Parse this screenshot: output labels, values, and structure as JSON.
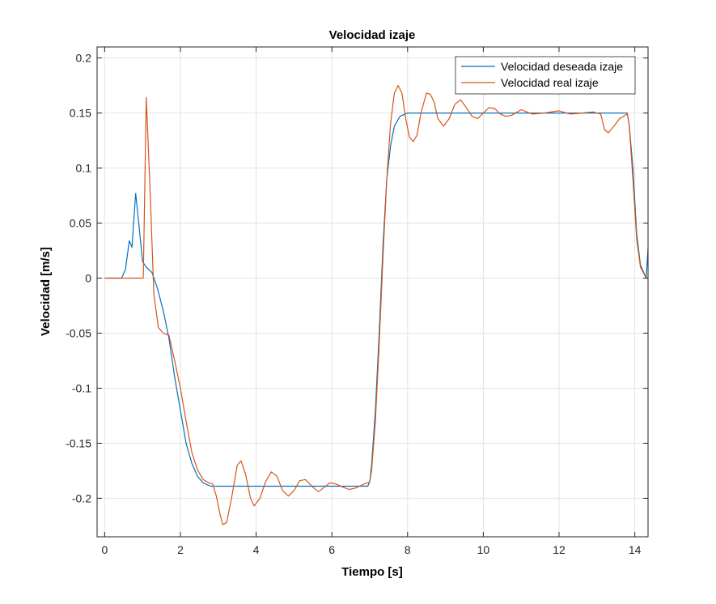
{
  "chart_data": {
    "type": "line",
    "title": "Velocidad izaje",
    "xlabel": "Tiempo [s]",
    "ylabel": "Velocidad [m/s]",
    "xlim": [
      -0.2,
      14.35
    ],
    "ylim": [
      -0.235,
      0.21
    ],
    "xticks": [
      0,
      2,
      4,
      6,
      8,
      10,
      12,
      14
    ],
    "xtick_labels": [
      "0",
      "2",
      "4",
      "6",
      "8",
      "10",
      "12",
      "14"
    ],
    "yticks": [
      -0.2,
      -0.15,
      -0.1,
      -0.05,
      0,
      0.05,
      0.1,
      0.15,
      0.2
    ],
    "ytick_labels": [
      "-0.2",
      "-0.15",
      "-0.1",
      "-0.05",
      "0",
      "0.05",
      "0.1",
      "0.15",
      "0.2"
    ],
    "grid": true,
    "legend_position": "top-right",
    "series": [
      {
        "name": "Velocidad deseada izaje",
        "color": "#0072BD",
        "points": [
          [
            0,
            0
          ],
          [
            0.45,
            0
          ],
          [
            0.55,
            0.008
          ],
          [
            0.65,
            0.034
          ],
          [
            0.72,
            0.028
          ],
          [
            0.82,
            0.077
          ],
          [
            0.9,
            0.05
          ],
          [
            1.0,
            0.015
          ],
          [
            1.1,
            0.01
          ],
          [
            1.25,
            0.005
          ],
          [
            1.4,
            -0.01
          ],
          [
            1.55,
            -0.03
          ],
          [
            1.7,
            -0.055
          ],
          [
            1.85,
            -0.09
          ],
          [
            2.0,
            -0.12
          ],
          [
            2.15,
            -0.15
          ],
          [
            2.3,
            -0.168
          ],
          [
            2.45,
            -0.18
          ],
          [
            2.6,
            -0.186
          ],
          [
            2.8,
            -0.189
          ],
          [
            3.0,
            -0.189
          ],
          [
            4.0,
            -0.189
          ],
          [
            5.0,
            -0.189
          ],
          [
            6.0,
            -0.189
          ],
          [
            6.95,
            -0.189
          ],
          [
            7.0,
            -0.185
          ],
          [
            7.05,
            -0.17
          ],
          [
            7.15,
            -0.12
          ],
          [
            7.25,
            -0.05
          ],
          [
            7.35,
            0.03
          ],
          [
            7.45,
            0.09
          ],
          [
            7.55,
            0.12
          ],
          [
            7.65,
            0.138
          ],
          [
            7.8,
            0.147
          ],
          [
            8.0,
            0.15
          ],
          [
            9.0,
            0.15
          ],
          [
            10.0,
            0.15
          ],
          [
            11.0,
            0.15
          ],
          [
            12.0,
            0.15
          ],
          [
            13.0,
            0.15
          ],
          [
            13.8,
            0.15
          ],
          [
            13.85,
            0.14
          ],
          [
            13.95,
            0.1
          ],
          [
            14.05,
            0.04
          ],
          [
            14.15,
            0.012
          ],
          [
            14.3,
            0.0
          ],
          [
            14.35,
            0.027
          ]
        ]
      },
      {
        "name": "Velocidad real izaje",
        "color": "#D95319",
        "points": [
          [
            0,
            0
          ],
          [
            0.5,
            0
          ],
          [
            1.02,
            0
          ],
          [
            1.1,
            0.164
          ],
          [
            1.2,
            0.08
          ],
          [
            1.3,
            -0.015
          ],
          [
            1.42,
            -0.045
          ],
          [
            1.55,
            -0.05
          ],
          [
            1.7,
            -0.052
          ],
          [
            1.85,
            -0.075
          ],
          [
            2.0,
            -0.1
          ],
          [
            2.15,
            -0.13
          ],
          [
            2.3,
            -0.158
          ],
          [
            2.45,
            -0.174
          ],
          [
            2.6,
            -0.183
          ],
          [
            2.75,
            -0.186
          ],
          [
            2.85,
            -0.187
          ],
          [
            2.95,
            -0.198
          ],
          [
            3.05,
            -0.215
          ],
          [
            3.12,
            -0.224
          ],
          [
            3.22,
            -0.222
          ],
          [
            3.35,
            -0.2
          ],
          [
            3.5,
            -0.17
          ],
          [
            3.6,
            -0.166
          ],
          [
            3.72,
            -0.178
          ],
          [
            3.85,
            -0.2
          ],
          [
            3.95,
            -0.207
          ],
          [
            4.1,
            -0.2
          ],
          [
            4.25,
            -0.185
          ],
          [
            4.4,
            -0.176
          ],
          [
            4.55,
            -0.18
          ],
          [
            4.7,
            -0.193
          ],
          [
            4.85,
            -0.198
          ],
          [
            5.0,
            -0.193
          ],
          [
            5.15,
            -0.184
          ],
          [
            5.3,
            -0.183
          ],
          [
            5.5,
            -0.19
          ],
          [
            5.65,
            -0.194
          ],
          [
            5.8,
            -0.19
          ],
          [
            5.95,
            -0.186
          ],
          [
            6.1,
            -0.187
          ],
          [
            6.3,
            -0.19
          ],
          [
            6.45,
            -0.192
          ],
          [
            6.6,
            -0.191
          ],
          [
            6.8,
            -0.188
          ],
          [
            7.0,
            -0.185
          ],
          [
            7.05,
            -0.175
          ],
          [
            7.15,
            -0.13
          ],
          [
            7.25,
            -0.06
          ],
          [
            7.35,
            0.02
          ],
          [
            7.45,
            0.09
          ],
          [
            7.55,
            0.14
          ],
          [
            7.65,
            0.168
          ],
          [
            7.75,
            0.175
          ],
          [
            7.85,
            0.168
          ],
          [
            7.95,
            0.145
          ],
          [
            8.05,
            0.128
          ],
          [
            8.15,
            0.124
          ],
          [
            8.25,
            0.13
          ],
          [
            8.35,
            0.15
          ],
          [
            8.5,
            0.168
          ],
          [
            8.6,
            0.167
          ],
          [
            8.7,
            0.16
          ],
          [
            8.8,
            0.145
          ],
          [
            8.95,
            0.138
          ],
          [
            9.1,
            0.145
          ],
          [
            9.25,
            0.158
          ],
          [
            9.4,
            0.162
          ],
          [
            9.55,
            0.155
          ],
          [
            9.7,
            0.147
          ],
          [
            9.85,
            0.145
          ],
          [
            10.0,
            0.15
          ],
          [
            10.15,
            0.155
          ],
          [
            10.3,
            0.154
          ],
          [
            10.45,
            0.149
          ],
          [
            10.6,
            0.147
          ],
          [
            10.75,
            0.148
          ],
          [
            11.0,
            0.153
          ],
          [
            11.3,
            0.149
          ],
          [
            11.6,
            0.15
          ],
          [
            12.0,
            0.152
          ],
          [
            12.3,
            0.149
          ],
          [
            12.6,
            0.15
          ],
          [
            12.9,
            0.151
          ],
          [
            13.1,
            0.149
          ],
          [
            13.2,
            0.135
          ],
          [
            13.3,
            0.132
          ],
          [
            13.45,
            0.138
          ],
          [
            13.6,
            0.145
          ],
          [
            13.8,
            0.149
          ],
          [
            13.85,
            0.14
          ],
          [
            13.95,
            0.09
          ],
          [
            14.05,
            0.035
          ],
          [
            14.15,
            0.01
          ],
          [
            14.3,
            0.0
          ],
          [
            14.35,
            0.0
          ]
        ]
      }
    ]
  }
}
